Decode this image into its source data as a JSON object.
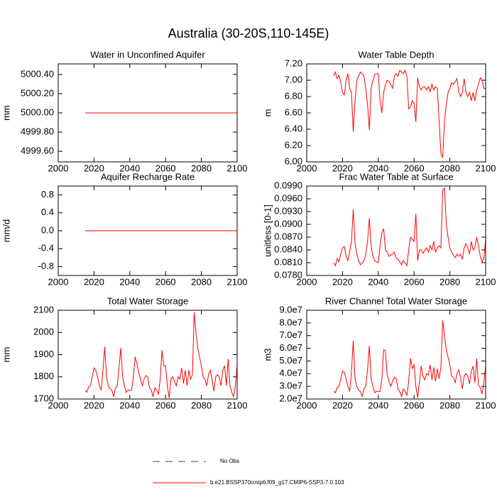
{
  "title": "Australia (30-20S,110-145E)",
  "legend": [
    {
      "label": "No Obs",
      "color": "#3a3a9a",
      "dashed": true
    },
    {
      "label": "b.e21.BSSP370cmip6.f09_g17.CMIP6-SSP3-7.0.103",
      "color": "#ff0000",
      "dashed": false
    }
  ],
  "chart_data": [
    {
      "type": "line",
      "title": "Water in Unconfined Aquifer",
      "y_label": "mm",
      "x": [
        2015,
        2100
      ],
      "series": [
        {
          "color": "#ff0000",
          "values": [
            5000,
            5000
          ]
        }
      ],
      "xlim": [
        2000,
        2100
      ],
      "xticks": [
        2000,
        2020,
        2040,
        2060,
        2080,
        2100
      ],
      "ylim": [
        4999.49,
        5000.51
      ],
      "yticks": [
        {
          "value": 5000.4,
          "label": "5000.40"
        },
        {
          "value": 5000.2,
          "label": "5000.20"
        },
        {
          "value": 5000.0,
          "label": "5000.00"
        },
        {
          "value": 4999.8,
          "label": "4999.80"
        },
        {
          "value": 4999.6,
          "label": "4999.60"
        }
      ]
    },
    {
      "type": "line",
      "title": "Water Table Depth",
      "y_label": "m",
      "x": [
        2015,
        2016,
        2017,
        2018,
        2019,
        2020,
        2021,
        2022,
        2023,
        2024,
        2025,
        2026,
        2027,
        2028,
        2029,
        2030,
        2031,
        2032,
        2033,
        2034,
        2035,
        2036,
        2037,
        2038,
        2039,
        2040,
        2041,
        2042,
        2043,
        2044,
        2045,
        2046,
        2047,
        2048,
        2049,
        2050,
        2051,
        2052,
        2053,
        2054,
        2055,
        2056,
        2057,
        2058,
        2059,
        2060,
        2061,
        2062,
        2063,
        2064,
        2065,
        2066,
        2067,
        2068,
        2069,
        2070,
        2071,
        2072,
        2073,
        2074,
        2075,
        2076,
        2077,
        2078,
        2079,
        2080,
        2081,
        2082,
        2083,
        2084,
        2085,
        2086,
        2087,
        2088,
        2089,
        2090,
        2091,
        2092,
        2093,
        2094,
        2095,
        2096,
        2097,
        2098,
        2099,
        2100
      ],
      "series": [
        {
          "color": "#ff0000",
          "values": [
            7.05,
            7.1,
            7.02,
            7.06,
            6.98,
            6.85,
            6.82,
            7.0,
            7.08,
            6.9,
            6.85,
            6.37,
            6.75,
            7.0,
            7.05,
            7.1,
            7.08,
            7.05,
            6.9,
            6.7,
            6.39,
            6.9,
            7.0,
            7.07,
            7.08,
            7.08,
            6.75,
            6.6,
            6.85,
            6.95,
            7.0,
            6.98,
            6.95,
            6.9,
            7.05,
            7.08,
            7.05,
            7.12,
            7.1,
            7.08,
            7.12,
            7.05,
            6.65,
            6.67,
            6.75,
            6.72,
            6.49,
            7.03,
            6.92,
            6.88,
            6.92,
            6.92,
            6.88,
            6.92,
            6.86,
            6.95,
            6.88,
            6.92,
            6.9,
            6.5,
            6.1,
            6.05,
            6.5,
            6.7,
            6.85,
            6.9,
            6.97,
            6.95,
            6.98,
            7.02,
            6.85,
            6.8,
            6.85,
            7.02,
            6.85,
            6.8,
            6.85,
            6.75,
            6.85,
            6.75,
            6.88,
            6.95,
            7.03,
            7.0,
            6.9,
            6.9
          ]
        }
      ],
      "xlim": [
        2000,
        2100
      ],
      "xticks": [
        2000,
        2020,
        2040,
        2060,
        2080,
        2100
      ],
      "ylim": [
        6.0,
        7.2
      ],
      "yticks": [
        {
          "value": 7.2,
          "label": "7.20"
        },
        {
          "value": 7.0,
          "label": "7.00"
        },
        {
          "value": 6.8,
          "label": "6.80"
        },
        {
          "value": 6.6,
          "label": "6.60"
        },
        {
          "value": 6.4,
          "label": "6.40"
        },
        {
          "value": 6.2,
          "label": "6.20"
        },
        {
          "value": 6.0,
          "label": "6.00"
        }
      ]
    },
    {
      "type": "line",
      "title": "Aquifer Recharge Rate",
      "y_label": "mm/d",
      "x": [
        2015,
        2100
      ],
      "series": [
        {
          "color": "#ff0000",
          "values": [
            0,
            0
          ]
        }
      ],
      "xlim": [
        2000,
        2100
      ],
      "xticks": [
        2000,
        2020,
        2040,
        2060,
        2080,
        2100
      ],
      "ylim": [
        -1.0,
        1.0
      ],
      "yticks": [
        0.8,
        0.4,
        {
          "value": 0.0,
          "label": "0.0"
        },
        -0.4,
        -0.8
      ]
    },
    {
      "type": "line",
      "title": "Frac Water Table at Surface",
      "y_label": "unitless [0-1]",
      "x": [
        2015,
        2016,
        2017,
        2018,
        2019,
        2020,
        2021,
        2022,
        2023,
        2024,
        2025,
        2026,
        2027,
        2028,
        2029,
        2030,
        2031,
        2032,
        2033,
        2034,
        2035,
        2036,
        2037,
        2038,
        2039,
        2040,
        2041,
        2042,
        2043,
        2044,
        2045,
        2046,
        2047,
        2048,
        2049,
        2050,
        2051,
        2052,
        2053,
        2054,
        2055,
        2056,
        2057,
        2058,
        2059,
        2060,
        2061,
        2062,
        2063,
        2064,
        2065,
        2066,
        2067,
        2068,
        2069,
        2070,
        2071,
        2072,
        2073,
        2074,
        2075,
        2076,
        2077,
        2078,
        2079,
        2080,
        2081,
        2082,
        2083,
        2084,
        2085,
        2086,
        2087,
        2088,
        2089,
        2090,
        2091,
        2092,
        2093,
        2094,
        2095,
        2096,
        2097,
        2098,
        2099,
        2100
      ],
      "series": [
        {
          "color": "#ff0000",
          "values": [
            0.081,
            0.0803,
            0.082,
            0.0812,
            0.083,
            0.0845,
            0.0848,
            0.0825,
            0.0815,
            0.0835,
            0.086,
            0.0935,
            0.0855,
            0.083,
            0.0815,
            0.0805,
            0.081,
            0.0815,
            0.083,
            0.086,
            0.0915,
            0.085,
            0.0825,
            0.0815,
            0.0812,
            0.081,
            0.085,
            0.088,
            0.089,
            0.084,
            0.0835,
            0.0825,
            0.0828,
            0.083,
            0.0835,
            0.082,
            0.0818,
            0.0812,
            0.0805,
            0.0815,
            0.081,
            0.0803,
            0.084,
            0.087,
            0.0865,
            0.086,
            0.0925,
            0.0815,
            0.084,
            0.084,
            0.0832,
            0.084,
            0.0845,
            0.0835,
            0.085,
            0.084,
            0.086,
            0.0835,
            0.0845,
            0.085,
            0.0845,
            0.098,
            0.0985,
            0.09,
            0.087,
            0.0845,
            0.0835,
            0.0828,
            0.0822,
            0.083,
            0.0825,
            0.083,
            0.0818,
            0.0845,
            0.0855,
            0.0845,
            0.083,
            0.086,
            0.084,
            0.0845,
            0.087,
            0.085,
            0.0825,
            0.0812,
            0.082,
            0.0865
          ]
        }
      ],
      "xlim": [
        2000,
        2100
      ],
      "xticks": [
        2000,
        2020,
        2040,
        2060,
        2080,
        2100
      ],
      "ylim": [
        0.078,
        0.099
      ],
      "yticks": [
        {
          "value": 0.099,
          "label": "0.0990"
        },
        {
          "value": 0.096,
          "label": "0.0960"
        },
        {
          "value": 0.093,
          "label": "0.0930"
        },
        {
          "value": 0.09,
          "label": "0.0900"
        },
        {
          "value": 0.087,
          "label": "0.0870"
        },
        {
          "value": 0.084,
          "label": "0.0840"
        },
        {
          "value": 0.081,
          "label": "0.0810"
        },
        {
          "value": 0.078,
          "label": "0.0780"
        }
      ]
    },
    {
      "type": "line",
      "title": "Total Water Storage",
      "y_label": "mm",
      "x": [
        2015,
        2016,
        2017,
        2018,
        2019,
        2020,
        2021,
        2022,
        2023,
        2024,
        2025,
        2026,
        2027,
        2028,
        2029,
        2030,
        2031,
        2032,
        2033,
        2034,
        2035,
        2036,
        2037,
        2038,
        2039,
        2040,
        2041,
        2042,
        2043,
        2044,
        2045,
        2046,
        2047,
        2048,
        2049,
        2050,
        2051,
        2052,
        2053,
        2054,
        2055,
        2056,
        2057,
        2058,
        2059,
        2060,
        2061,
        2062,
        2063,
        2064,
        2065,
        2066,
        2067,
        2068,
        2069,
        2070,
        2071,
        2072,
        2073,
        2074,
        2075,
        2076,
        2077,
        2078,
        2079,
        2080,
        2081,
        2082,
        2083,
        2084,
        2085,
        2086,
        2087,
        2088,
        2089,
        2090,
        2091,
        2092,
        2093,
        2094,
        2095,
        2096,
        2097,
        2098,
        2099,
        2100
      ],
      "series": [
        {
          "color": "#ff0000",
          "values": [
            1740,
            1730,
            1755,
            1760,
            1800,
            1840,
            1830,
            1800,
            1760,
            1740,
            1830,
            1935,
            1800,
            1760,
            1745,
            1740,
            1710,
            1750,
            1760,
            1845,
            1930,
            1800,
            1760,
            1730,
            1740,
            1740,
            1740,
            1800,
            1890,
            1860,
            1820,
            1790,
            1760,
            1790,
            1805,
            1800,
            1750,
            1740,
            1710,
            1750,
            1740,
            1720,
            1790,
            1920,
            1850,
            1850,
            1760,
            1705,
            1790,
            1800,
            1780,
            1760,
            1800,
            1790,
            1840,
            1770,
            1830,
            1760,
            1830,
            1790,
            1810,
            2090,
            2000,
            1930,
            1890,
            1850,
            1800,
            1790,
            1760,
            1810,
            1830,
            1790,
            1735,
            1800,
            1810,
            1800,
            1760,
            1830,
            1850,
            1760,
            1880,
            1760,
            1730,
            1710,
            1760,
            1850
          ]
        }
      ],
      "xlim": [
        2000,
        2100
      ],
      "xticks": [
        2000,
        2020,
        2040,
        2060,
        2080,
        2100
      ],
      "ylim": [
        1700,
        2100
      ],
      "yticks": [
        2100,
        2000,
        1900,
        1800,
        1700
      ]
    },
    {
      "type": "line",
      "title": "River Channel Total Water Storage",
      "y_label": "m3",
      "x": [
        2015,
        2016,
        2017,
        2018,
        2019,
        2020,
        2021,
        2022,
        2023,
        2024,
        2025,
        2026,
        2027,
        2028,
        2029,
        2030,
        2031,
        2032,
        2033,
        2034,
        2035,
        2036,
        2037,
        2038,
        2039,
        2040,
        2041,
        2042,
        2043,
        2044,
        2045,
        2046,
        2047,
        2048,
        2049,
        2050,
        2051,
        2052,
        2053,
        2054,
        2055,
        2056,
        2057,
        2058,
        2059,
        2060,
        2061,
        2062,
        2063,
        2064,
        2065,
        2066,
        2067,
        2068,
        2069,
        2070,
        2071,
        2072,
        2073,
        2074,
        2075,
        2076,
        2077,
        2078,
        2079,
        2080,
        2081,
        2082,
        2083,
        2084,
        2085,
        2086,
        2087,
        2088,
        2089,
        2090,
        2091,
        2092,
        2093,
        2094,
        2095,
        2096,
        2097,
        2098,
        2099,
        2100
      ],
      "series": [
        {
          "color": "#ff0000",
          "values": [
            26000000.0,
            25000000.0,
            29000000.0,
            30000000.0,
            36000000.0,
            42000000.0,
            41000000.0,
            36000000.0,
            30000000.0,
            26000000.0,
            41000000.0,
            66000000.0,
            36000000.0,
            30000000.0,
            27000000.0,
            26000000.0,
            22000000.0,
            28000000.0,
            30000000.0,
            43000000.0,
            62000000.0,
            36000000.0,
            30000000.0,
            25000000.0,
            26000000.0,
            26000000.0,
            26000000.0,
            36000000.0,
            59000000.0,
            58000000.0,
            39000000.0,
            34000000.0,
            30000000.0,
            34000000.0,
            37000000.0,
            36000000.0,
            28000000.0,
            26000000.0,
            22000000.0,
            28000000.0,
            26000000.0,
            23000000.0,
            34000000.0,
            52000000.0,
            44000000.0,
            47000000.0,
            30000000.0,
            21000000.0,
            34000000.0,
            46000000.0,
            38000000.0,
            35000000.0,
            40000000.0,
            39000000.0,
            47000000.0,
            35000000.0,
            45000000.0,
            34000000.0,
            44000000.0,
            36000000.0,
            45000000.0,
            82000000.0,
            70000000.0,
            59000000.0,
            53000000.0,
            47000000.0,
            38000000.0,
            37000000.0,
            33000000.0,
            40000000.0,
            43000000.0,
            37000000.0,
            28000000.0,
            38000000.0,
            40000000.0,
            38000000.0,
            32000000.0,
            42000000.0,
            46000000.0,
            33000000.0,
            52000000.0,
            31000000.0,
            29000000.0,
            24000000.0,
            33000000.0,
            46000000.0
          ]
        }
      ],
      "xlim": [
        2000,
        2100
      ],
      "xticks": [
        2000,
        2020,
        2040,
        2060,
        2080,
        2100
      ],
      "ylim": [
        20000000.0,
        90000000.0
      ],
      "yticks": [
        {
          "value": 90000000.0,
          "label": "9.0e7"
        },
        {
          "value": 80000000.0,
          "label": "8.0e7"
        },
        {
          "value": 70000000.0,
          "label": "7.0e7"
        },
        {
          "value": 60000000.0,
          "label": "6.0e7"
        },
        {
          "value": 50000000.0,
          "label": "5.0e7"
        },
        {
          "value": 40000000.0,
          "label": "4.0e7"
        },
        {
          "value": 30000000.0,
          "label": "3.0e7"
        },
        {
          "value": 20000000.0,
          "label": "2.0e7"
        }
      ]
    }
  ]
}
